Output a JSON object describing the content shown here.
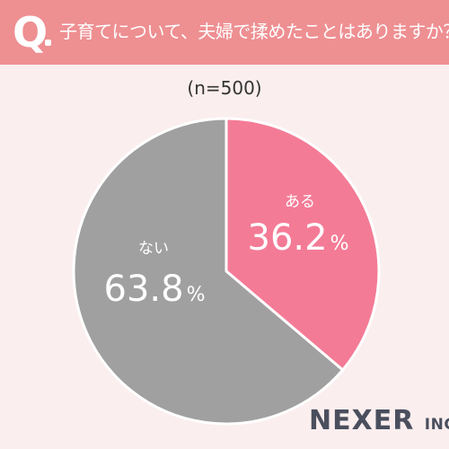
{
  "header": {
    "q_mark": "Q",
    "question": "子育てについて、夫婦で揉めたことはありますか？"
  },
  "sample_size": "(n=500)",
  "logo": {
    "main": "NEXER",
    "suffix": "INC."
  },
  "colors": {
    "header_bg": "#ee8f92",
    "background": "#fbeeee",
    "yes": "#f47b96",
    "no": "#a0a0a0"
  },
  "chart_data": {
    "type": "pie",
    "categories": [
      "ある",
      "ない"
    ],
    "values": [
      36.2,
      63.8
    ],
    "unit": "%",
    "colors": [
      "#f47b96",
      "#a0a0a0"
    ]
  }
}
